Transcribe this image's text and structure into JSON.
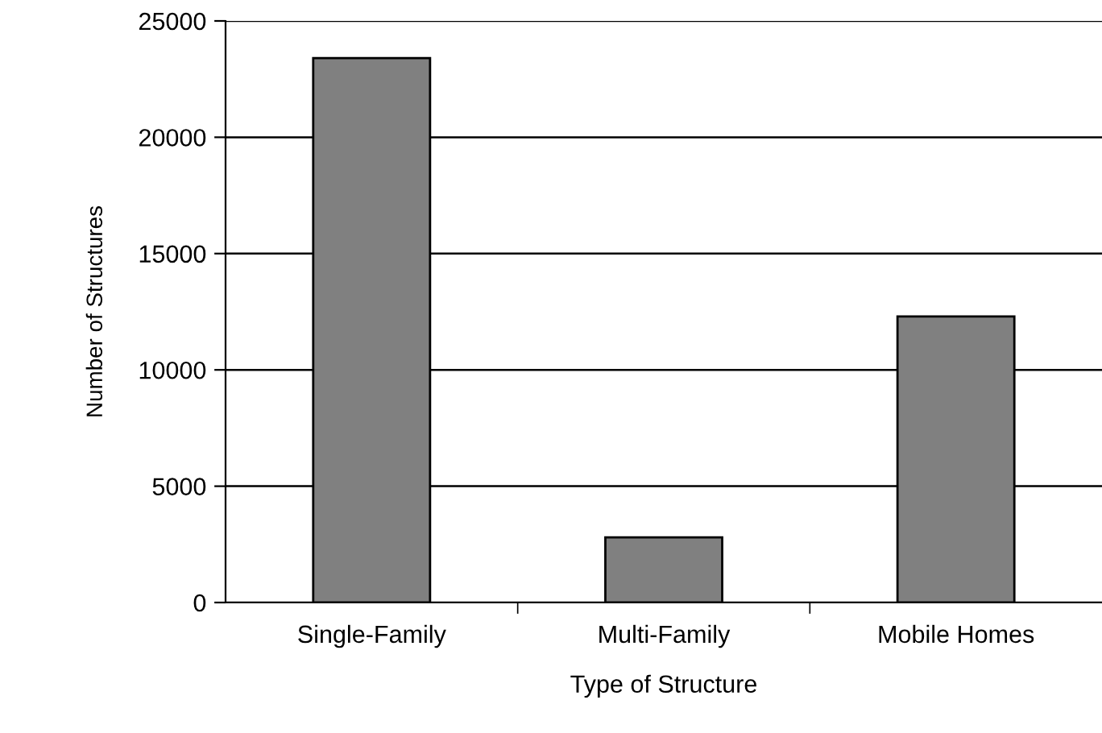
{
  "chart_data": {
    "type": "bar",
    "xlabel": "Type of Structure",
    "ylabel": "Number of Structures",
    "categories": [
      "Single-Family",
      "Multi-Family",
      "Mobile Homes"
    ],
    "values": [
      23400,
      2800,
      12300
    ],
    "color": "#808080",
    "ylim": [
      0,
      25000
    ],
    "yticks": [
      0,
      5000,
      10000,
      15000,
      20000,
      25000
    ],
    "grid": "y"
  }
}
